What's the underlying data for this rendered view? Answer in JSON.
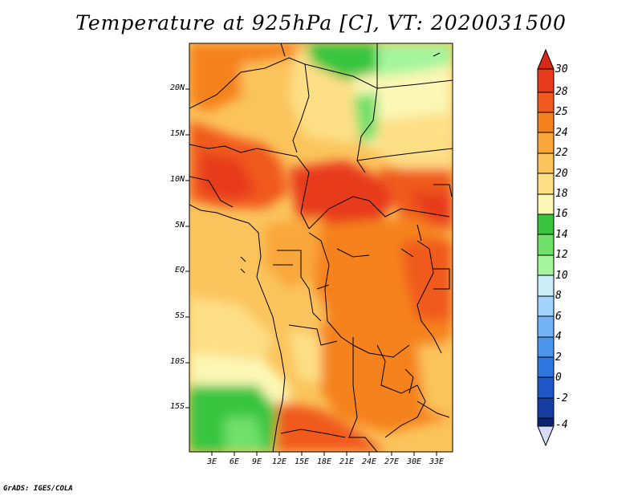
{
  "title": "Temperature at 925hPa [C], VT: 2020031500",
  "credit": "GrADS: IGES/COLA",
  "lat_labels": [
    "20N",
    "15N",
    "10N",
    "5N",
    "EQ",
    "5S",
    "10S",
    "15S"
  ],
  "lon_labels": [
    "3E",
    "6E",
    "9E",
    "12E",
    "15E",
    "18E",
    "21E",
    "24E",
    "27E",
    "30E",
    "33E"
  ],
  "colorbar": {
    "labels": [
      "30",
      "28",
      "25",
      "24",
      "22",
      "20",
      "18",
      "16",
      "14",
      "12",
      "10",
      "8",
      "6",
      "4",
      "2",
      "0",
      "-2",
      "-4"
    ],
    "colors": [
      "#e83a1c",
      "#f05a1e",
      "#f5821f",
      "#f9a73a",
      "#fbc45c",
      "#fddf86",
      "#fcf7b5",
      "#39c53f",
      "#6fe06a",
      "#a4f59c",
      "#cdeffa",
      "#a3d4fb",
      "#72b4f5",
      "#4a96ec",
      "#2f76df",
      "#1f57c6",
      "#163ea0",
      "#0e2370"
    ],
    "above_color": "#d9281a",
    "below_color": "#d8dbf6"
  },
  "map": {
    "region": "Central Africa",
    "lon_range": [
      "0E",
      "35E"
    ],
    "lat_range": [
      "20S",
      "24N"
    ]
  }
}
